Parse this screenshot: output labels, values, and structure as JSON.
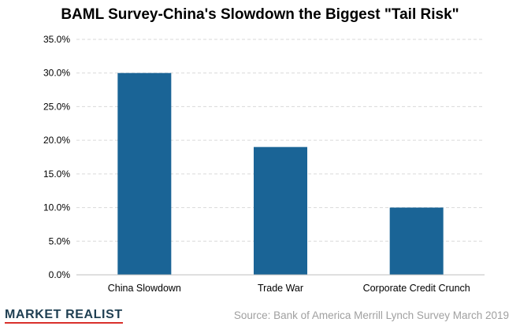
{
  "chart_data": {
    "type": "bar",
    "title": "BAML Survey-China's Slowdown the Biggest \"Tail Risk\"",
    "categories": [
      "China Slowdown",
      "Trade War",
      "Corporate Credit Crunch"
    ],
    "values": [
      30.0,
      19.0,
      10.0
    ],
    "ylim": [
      0,
      35
    ],
    "yticks": [
      0,
      5,
      10,
      15,
      20,
      25,
      30,
      35
    ],
    "ytick_labels": [
      "0.0%",
      "5.0%",
      "10.0%",
      "15.0%",
      "20.0%",
      "25.0%",
      "30.0%",
      "35.0%"
    ],
    "grid": true,
    "bar_color": "#1a6496",
    "gridline_color": "#d9d9d9"
  },
  "footer": {
    "brand": "MARKET REALIST",
    "source": "Source: Bank of America Merrill Lynch Survey March 2019"
  },
  "colors": {
    "brand_text": "#1f3f52",
    "brand_underline": "#d9302b",
    "source_text": "#a0a0a0"
  }
}
